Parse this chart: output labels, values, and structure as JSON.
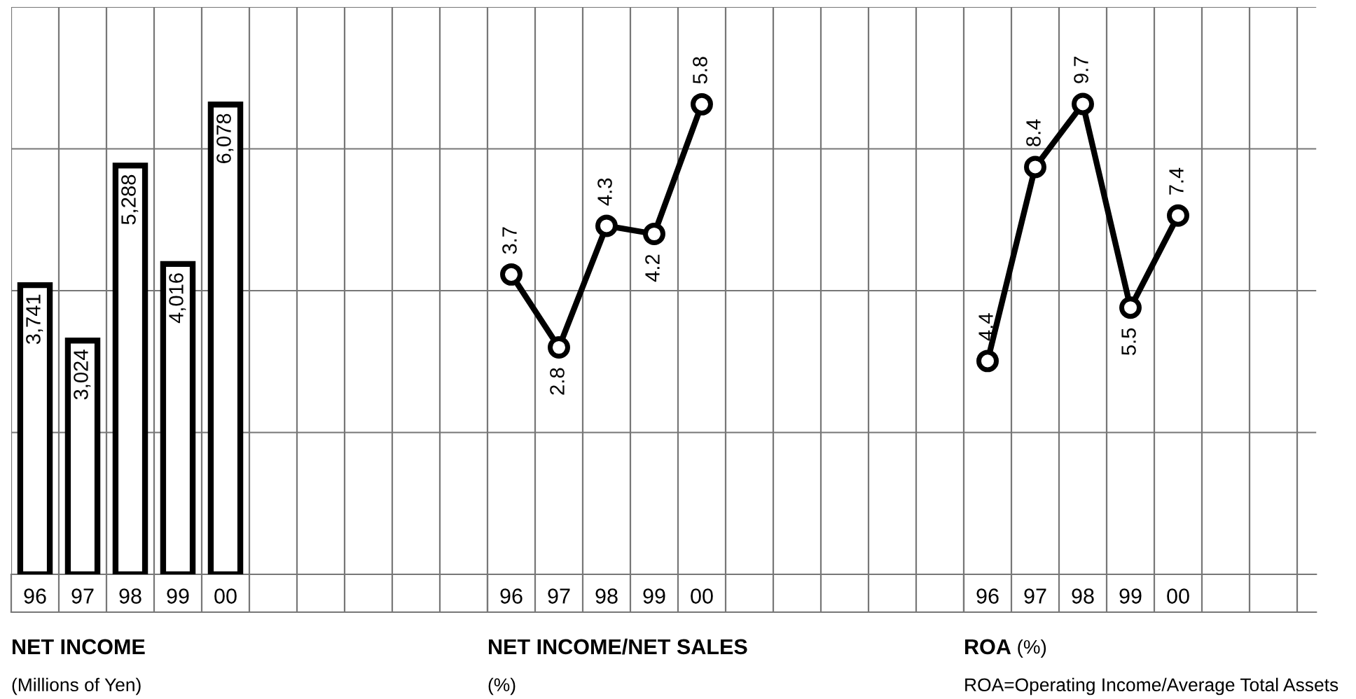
{
  "chart_data": [
    {
      "type": "bar",
      "title": "NET INCOME",
      "subtitle": "(Millions of Yen)",
      "categories": [
        "96",
        "97",
        "98",
        "99",
        "00"
      ],
      "values": [
        3741,
        3024,
        5288,
        4016,
        6078
      ],
      "value_labels": [
        "3,741",
        "3,024",
        "5,288",
        "4,016",
        "6,078"
      ],
      "color": "#000000",
      "ylim": [
        0,
        7340
      ],
      "yticks": [
        {
          "value": 0,
          "label": null
        },
        {
          "value": 1835,
          "label": null
        },
        {
          "value": 3670,
          "label": null
        },
        {
          "value": 5505,
          "label": null
        },
        {
          "value": 7340,
          "label": null
        }
      ],
      "grid": true,
      "tick_labels": "x"
    },
    {
      "type": "line",
      "title": "NET INCOME/NET SALES",
      "subtitle": "(%)",
      "categories": [
        "96",
        "97",
        "98",
        "99",
        "00"
      ],
      "values": [
        3.7,
        2.8,
        4.3,
        4.2,
        5.8
      ],
      "data_labels": true,
      "color": "#000000",
      "marker": "circle",
      "line_style": "solid",
      "ylim": [
        0,
        7
      ],
      "yticks": [
        {
          "value": 0,
          "label": null
        },
        {
          "value": 1.75,
          "label": null
        },
        {
          "value": 3.5,
          "label": null
        },
        {
          "value": 5.25,
          "label": null
        },
        {
          "value": 7,
          "label": null
        }
      ],
      "grid": true,
      "tick_labels": "x"
    },
    {
      "type": "line",
      "title": "ROA",
      "subtitle": "(%)",
      "annotations": [
        "ROA=Operating Income/Average Total Assets"
      ],
      "categories": [
        "96",
        "97",
        "98",
        "99",
        "00"
      ],
      "values": [
        4.4,
        8.4,
        9.7,
        5.5,
        7.4
      ],
      "data_labels": true,
      "color": "#000000",
      "marker": "circle",
      "line_style": "solid",
      "ylim": [
        0,
        11.7
      ],
      "yticks": [
        {
          "value": 0,
          "label": null
        },
        {
          "value": 2.925,
          "label": null
        },
        {
          "value": 5.85,
          "label": null
        },
        {
          "value": 8.775,
          "label": null
        },
        {
          "value": 11.7,
          "label": null
        }
      ],
      "grid": true,
      "tick_labels": "x"
    }
  ]
}
